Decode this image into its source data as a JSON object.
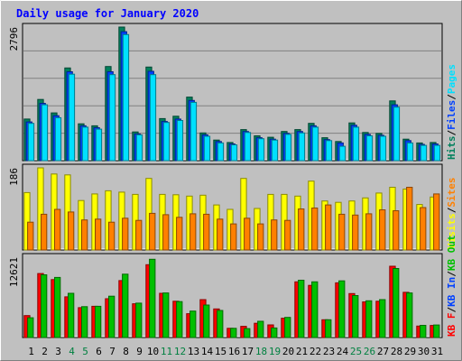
{
  "colors": {
    "background": "#C0C0C0",
    "frame_light": "#FFFFFF",
    "frame_dark": "#808080",
    "plot_border": "#000000",
    "title": "#0000FF",
    "hits": "#00805C",
    "files": "#0040FF",
    "pages": "#00E0FF",
    "visits": "#FFFF00",
    "sites": "#FF8000",
    "kb_in": "#00C000",
    "kb_out": "#FF0000",
    "weekend_day": "#008040",
    "weekday": "#000000",
    "gridline": "#808080"
  },
  "chart_data": {
    "title": "Daily usage for January 2020",
    "type": "bar",
    "categories": [
      "1",
      "2",
      "3",
      "4",
      "5",
      "6",
      "7",
      "8",
      "9",
      "10",
      "11",
      "12",
      "13",
      "14",
      "15",
      "16",
      "17",
      "18",
      "19",
      "20",
      "21",
      "22",
      "23",
      "24",
      "25",
      "26",
      "27",
      "28",
      "29",
      "30",
      "31"
    ],
    "weekend_days": [
      "4",
      "5",
      "11",
      "12",
      "18",
      "19",
      "25",
      "26"
    ],
    "panels": [
      {
        "name": "hits-files-pages",
        "axis_max_label": "2796",
        "ylim": [
          0,
          2796
        ],
        "legend": [
          {
            "text": "Hits",
            "color_key": "hits"
          },
          {
            "text": "/",
            "color_key": "weekday"
          },
          {
            "text": "Files",
            "color_key": "files"
          },
          {
            "text": "/",
            "color_key": "weekday"
          },
          {
            "text": "Pages",
            "color_key": "pages"
          }
        ],
        "gridlines": 4,
        "series": [
          {
            "name": "Hits",
            "color_key": "hits",
            "values": [
              870,
              1280,
              1000,
              1940,
              770,
              730,
              1970,
              2796,
              600,
              1960,
              880,
              930,
              1330,
              580,
              430,
              380,
              650,
              520,
              490,
              610,
              650,
              780,
              480,
              400,
              790,
              590,
              570,
              1250,
              450,
              370,
              380
            ]
          },
          {
            "name": "Files",
            "color_key": "files",
            "values": [
              810,
              1200,
              940,
              1860,
              730,
              690,
              1860,
              2700,
              560,
              1870,
              820,
              870,
              1260,
              540,
              400,
              350,
              610,
              480,
              450,
              570,
              610,
              730,
              440,
              370,
              740,
              550,
              530,
              1170,
              420,
              340,
              350
            ]
          },
          {
            "name": "Pages",
            "color_key": "pages",
            "values": [
              780,
              1170,
              900,
              1810,
              700,
              660,
              1800,
              2640,
              540,
              1800,
              800,
              840,
              1220,
              510,
              370,
              330,
              590,
              460,
              430,
              550,
              580,
              700,
              420,
              300,
              700,
              520,
              510,
              1120,
              370,
              320,
              320
            ]
          }
        ]
      },
      {
        "name": "visits-sites",
        "axis_max_label": "186",
        "ylim": [
          0,
          186
        ],
        "legend": [
          {
            "text": "Visits",
            "color_key": "visits"
          },
          {
            "text": "/",
            "color_key": "weekday"
          },
          {
            "text": "Sites",
            "color_key": "sites"
          }
        ],
        "gridlines": 0,
        "series": [
          {
            "name": "Visits",
            "color_key": "visits",
            "values": [
              130,
              186,
              172,
              170,
              112,
              127,
              134,
              131,
              126,
              162,
              126,
              125,
              122,
              124,
              102,
              92,
              162,
              94,
              126,
              126,
              122,
              156,
              111,
              108,
              111,
              118,
              129,
              142,
              138,
              103,
              120
            ]
          },
          {
            "name": "Sites",
            "color_key": "sites",
            "values": [
              63,
              81,
              92,
              86,
              68,
              70,
              63,
              72,
              67,
              83,
              80,
              74,
              82,
              81,
              70,
              59,
              72,
              59,
              68,
              67,
              93,
              95,
              102,
              81,
              79,
              82,
              91,
              89,
              142,
              96,
              127
            ]
          }
        ]
      },
      {
        "name": "kb",
        "axis_max_label": "12621",
        "ylim": [
          0,
          12621
        ],
        "legend": [
          {
            "text": "KB F",
            "color_key": "kb_out"
          },
          {
            "text": "/",
            "color_key": "weekday"
          },
          {
            "text": "KB In",
            "color_key": "files"
          },
          {
            "text": "/",
            "color_key": "weekday"
          },
          {
            "text": "KB Out",
            "color_key": "kb_in"
          }
        ],
        "gridlines": 0,
        "series": [
          {
            "name": "KB F",
            "color_key": "kb_out",
            "values": [
              3450,
              10050,
              9100,
              6400,
              4700,
              4900,
              6100,
              8950,
              5300,
              11450,
              6950,
              5700,
              3750,
              5950,
              4500,
              1440,
              1760,
              2240,
              1980,
              3040,
              8750,
              8200,
              2800,
              8600,
              6900,
              5600,
              5700,
              11200,
              7100,
              1800,
              1900
            ]
          },
          {
            "name": "KB Out",
            "color_key": "kb_in",
            "values": [
              3100,
              9850,
              9450,
              6950,
              4850,
              4900,
              6500,
              9950,
              5400,
              12300,
              7000,
              5650,
              4150,
              5100,
              4250,
              1450,
              1400,
              2550,
              1500,
              3160,
              9000,
              8750,
              2800,
              8900,
              6600,
              5770,
              5950,
              10850,
              7000,
              1920,
              1970
            ]
          }
        ]
      }
    ]
  }
}
